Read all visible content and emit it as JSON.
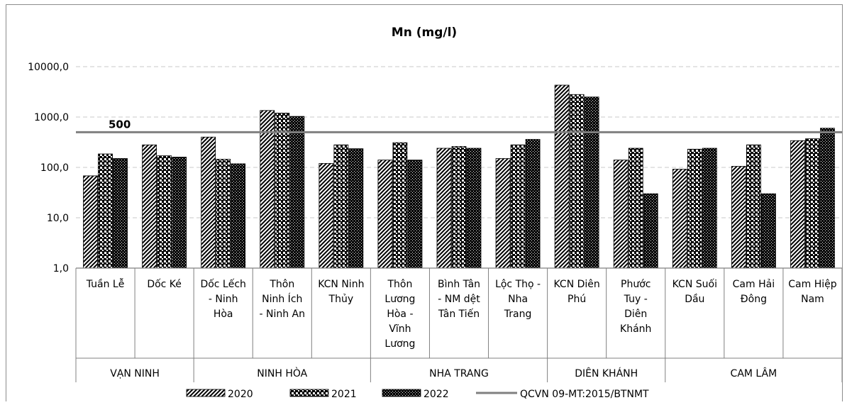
{
  "chart_data": {
    "type": "bar",
    "title": "Mn (mg/l)",
    "yscale": "log",
    "ylim": [
      1,
      10000
    ],
    "ytick_labels": [
      "1,0",
      "10,0",
      "100,0",
      "1000,0",
      "10000,0"
    ],
    "ytick_values": [
      1,
      10,
      100,
      1000,
      10000
    ],
    "grid": "horizontal dashed",
    "legend_position": "bottom",
    "categories": [
      "Tuần Lễ",
      "Dốc Ké",
      "Dốc Lếch - Ninh Hòa",
      "Thôn Ninh Ích - Ninh An",
      "KCN Ninh Thủy",
      "Thôn Lương Hòa - Vĩnh Lương",
      "Bình Tân - NM dệt Tân Tiến",
      "Lộc Thọ - Nha Trang",
      "KCN Diên Phú",
      "Phước Tuy - Diên Khánh",
      "KCN Suối Dầu",
      "Cam Hải Đông",
      "Cam Hiệp Nam"
    ],
    "category_lines": [
      [
        "Tuần Lễ"
      ],
      [
        "Dốc Ké"
      ],
      [
        "Dốc Lếch",
        "- Ninh",
        "Hòa"
      ],
      [
        "Thôn",
        "Ninh Ích",
        "- Ninh An"
      ],
      [
        "KCN Ninh",
        "Thủy"
      ],
      [
        "Thôn",
        "Lương",
        "Hòa -",
        "Vĩnh",
        "Lương"
      ],
      [
        "Bình Tân",
        "- NM dệt",
        "Tân Tiến"
      ],
      [
        "Lộc Thọ -",
        "Nha",
        "Trang"
      ],
      [
        "KCN Diên",
        "Phú"
      ],
      [
        "Phước",
        "Tuy -",
        "Diên",
        "Khánh"
      ],
      [
        "KCN Suối",
        "Dầu"
      ],
      [
        "Cam Hải",
        "Đông"
      ],
      [
        "Cam Hiệp",
        "Nam"
      ]
    ],
    "groups": [
      {
        "label": "VẠN NINH",
        "start": 0,
        "count": 2
      },
      {
        "label": "NINH HÒA",
        "start": 2,
        "count": 3
      },
      {
        "label": "NHA TRANG",
        "start": 5,
        "count": 3
      },
      {
        "label": "DIÊN KHÁNH",
        "start": 8,
        "count": 2
      },
      {
        "label": "CAM LÂM",
        "start": 10,
        "count": 3
      }
    ],
    "series": [
      {
        "name": "2020",
        "pattern": "diagonal",
        "values": [
          68,
          280,
          400,
          1350,
          120,
          140,
          240,
          150,
          4300,
          140,
          92,
          105,
          340
        ]
      },
      {
        "name": "2021",
        "pattern": "dots",
        "values": [
          185,
          170,
          145,
          1200,
          280,
          310,
          260,
          280,
          2800,
          240,
          230,
          280,
          370
        ]
      },
      {
        "name": "2022",
        "pattern": "dense-dots",
        "values": [
          150,
          160,
          118,
          1030,
          235,
          140,
          240,
          360,
          2500,
          30,
          240,
          30,
          600
        ]
      }
    ],
    "reference_line": {
      "name": "QCVN 09-MT:2015/BTNMT",
      "value": 500,
      "label": "500",
      "color": "#808080"
    }
  }
}
